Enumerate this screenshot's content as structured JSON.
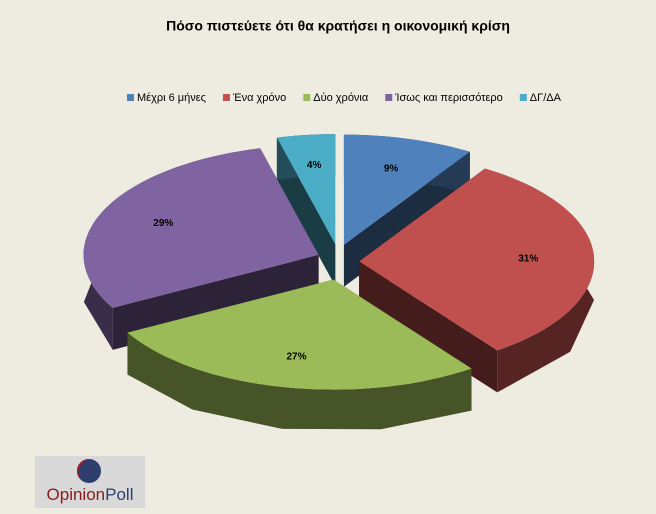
{
  "chart_data": {
    "type": "pie3d",
    "title": "Πόσο πιστεύετε ότι θα κρατήσει η οικονομική κρίση",
    "categories": [
      "Μέχρι 6 μήνες",
      "Ένα χρόνο",
      "Δύο χρόνια",
      "Ίσως και περισσότερο",
      "ΔΓ/ΔΑ"
    ],
    "values": [
      9,
      31,
      27,
      29,
      4
    ],
    "value_labels": [
      "9%",
      "31%",
      "27%",
      "29%",
      "4%"
    ],
    "colors": [
      "#4f81bd",
      "#c0504d",
      "#9bbb59",
      "#8064a2",
      "#4bacc6"
    ],
    "legend": "top"
  },
  "logo": [
    "Opinion",
    "Poll"
  ]
}
